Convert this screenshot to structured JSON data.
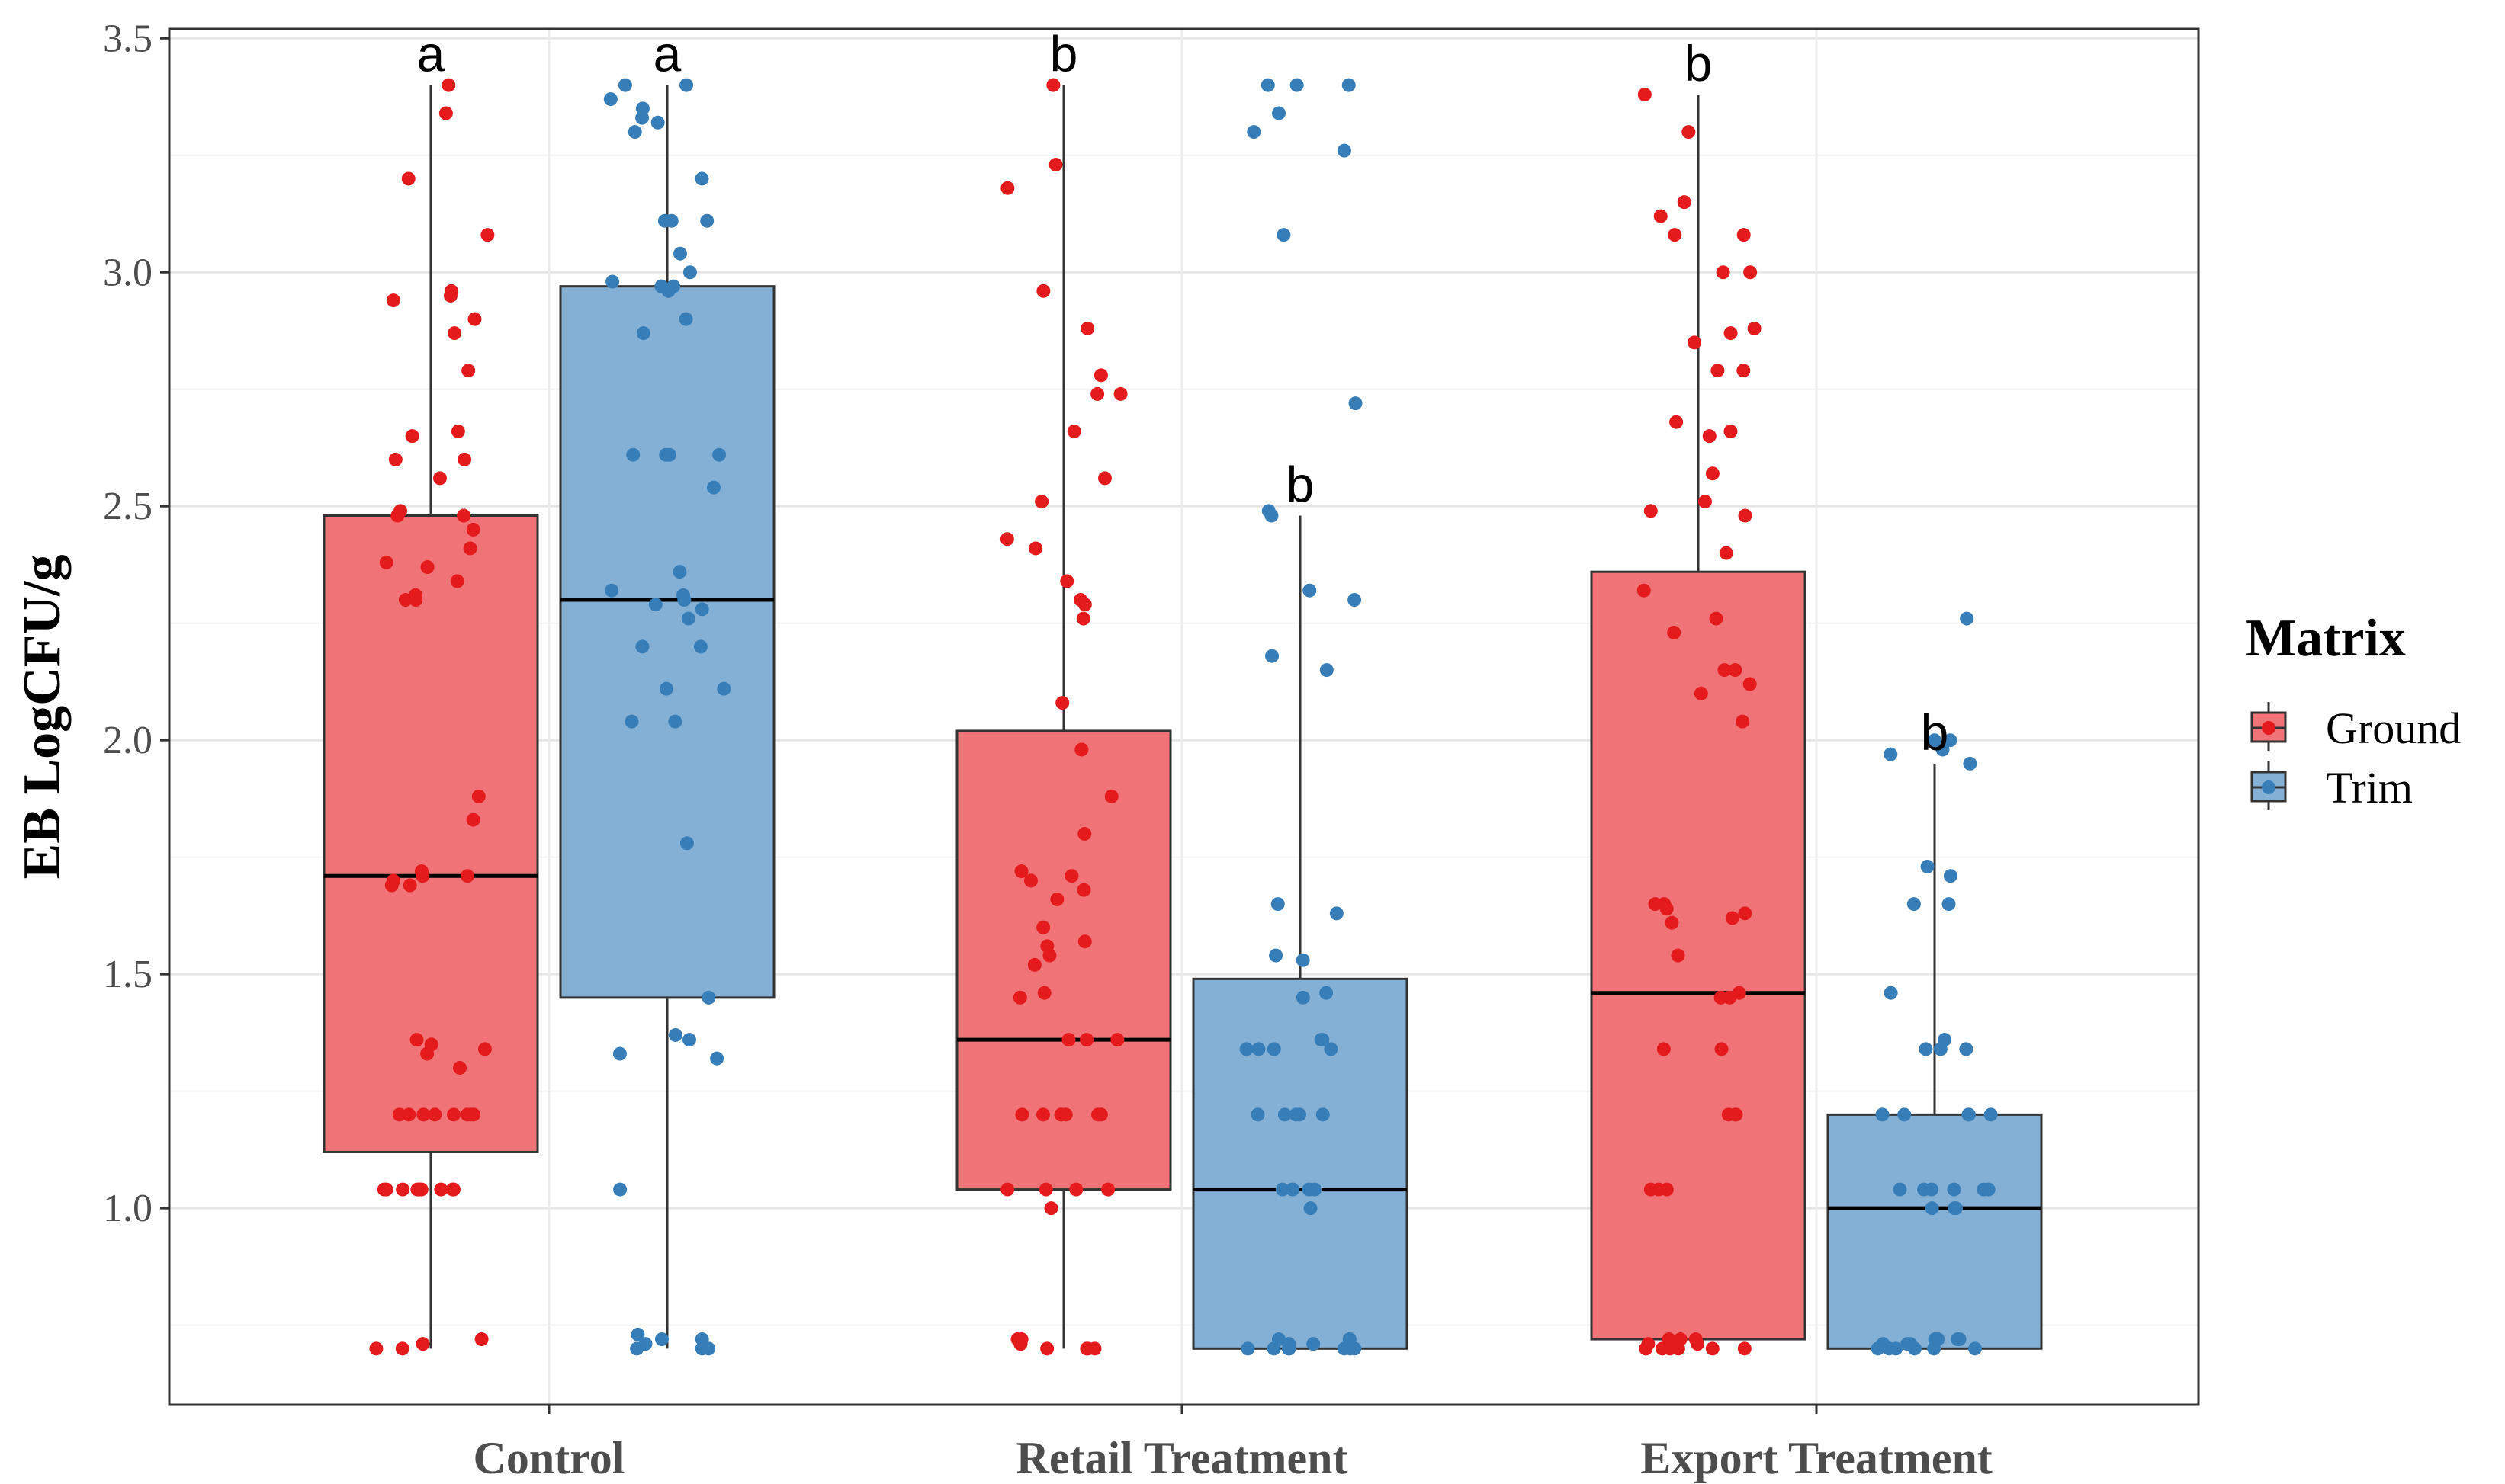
{
  "chart_data": {
    "type": "boxplot",
    "title": "",
    "xlabel": "",
    "ylabel": "EB LogCFU/g",
    "ylim": [
      0.58,
      3.52
    ],
    "yticks": [
      "1.0",
      "1.5",
      "2.0",
      "2.5",
      "3.0",
      "3.5"
    ],
    "ytick_values": [
      1.0,
      1.5,
      2.0,
      2.5,
      3.0,
      3.5
    ],
    "grid": true,
    "legend": {
      "title": "Matrix",
      "position": "right",
      "entries": [
        {
          "label": "Ground",
          "color": "#e41a1c",
          "fill": "#f07477"
        },
        {
          "label": "Trim",
          "color": "#377eb8",
          "fill": "#85b0d6"
        }
      ]
    },
    "categories": [
      "Control",
      "Retail Treatment",
      "Export Treatment"
    ],
    "boxes": [
      {
        "category": "Control",
        "matrix": "Ground",
        "min": 0.7,
        "q1": 1.12,
        "median": 1.71,
        "q3": 2.48,
        "max": 3.4,
        "letter": "a",
        "points": [
          3.4,
          3.2,
          3.34,
          3.08,
          2.96,
          2.95,
          2.94,
          2.9,
          2.87,
          2.79,
          2.66,
          2.65,
          2.6,
          2.6,
          2.56,
          2.49,
          2.48,
          2.48,
          2.45,
          2.41,
          2.38,
          2.37,
          2.34,
          2.31,
          2.3,
          2.3,
          1.88,
          1.83,
          1.72,
          1.71,
          1.71,
          1.7,
          1.69,
          1.69,
          1.36,
          1.35,
          1.34,
          1.33,
          1.3,
          1.2,
          1.2,
          1.2,
          1.2,
          1.2,
          1.2,
          1.2,
          1.2,
          1.04,
          1.04,
          1.04,
          1.04,
          1.04,
          1.04,
          1.04,
          1.04,
          1.04,
          1.04,
          0.72,
          0.71,
          0.7,
          0.7
        ]
      },
      {
        "category": "Control",
        "matrix": "Trim",
        "min": 0.7,
        "q1": 1.45,
        "median": 2.3,
        "q3": 2.97,
        "max": 3.4,
        "letter": "a",
        "points": [
          3.4,
          3.4,
          3.37,
          3.35,
          3.33,
          3.32,
          3.3,
          3.2,
          3.11,
          3.11,
          3.11,
          3.04,
          3.0,
          2.98,
          2.97,
          2.97,
          2.96,
          2.9,
          2.87,
          2.61,
          2.61,
          2.61,
          2.61,
          2.54,
          2.36,
          2.32,
          2.31,
          2.3,
          2.29,
          2.28,
          2.26,
          2.2,
          2.2,
          2.11,
          2.11,
          2.04,
          2.04,
          1.78,
          1.45,
          1.37,
          1.36,
          1.33,
          1.32,
          1.04,
          0.73,
          0.72,
          0.72,
          0.71,
          0.7,
          0.7,
          0.7
        ]
      },
      {
        "category": "Retail Treatment",
        "matrix": "Ground",
        "min": 0.7,
        "q1": 1.04,
        "median": 1.36,
        "q3": 2.02,
        "max": 3.4,
        "letter": "b",
        "points": [
          3.4,
          3.23,
          3.18,
          2.96,
          2.88,
          2.78,
          2.74,
          2.74,
          2.66,
          2.56,
          2.51,
          2.43,
          2.41,
          2.34,
          2.3,
          2.29,
          2.26,
          2.08,
          1.98,
          1.88,
          1.8,
          1.72,
          1.71,
          1.7,
          1.68,
          1.66,
          1.6,
          1.57,
          1.56,
          1.54,
          1.52,
          1.46,
          1.45,
          1.36,
          1.36,
          1.36,
          1.2,
          1.2,
          1.2,
          1.2,
          1.2,
          1.2,
          1.2,
          1.04,
          1.04,
          1.04,
          1.04,
          1.0,
          0.72,
          0.72,
          0.71,
          0.71,
          0.7,
          0.7,
          0.7,
          0.7
        ]
      },
      {
        "category": "Retail Treatment",
        "matrix": "Trim",
        "min": 0.7,
        "q1": 0.7,
        "median": 1.04,
        "q3": 1.49,
        "max": 2.48,
        "letter": "b",
        "points": [
          3.4,
          3.4,
          3.4,
          3.34,
          3.3,
          3.26,
          3.08,
          2.72,
          2.49,
          2.48,
          2.32,
          2.3,
          2.18,
          2.15,
          1.65,
          1.63,
          1.54,
          1.53,
          1.46,
          1.45,
          1.36,
          1.36,
          1.34,
          1.34,
          1.34,
          1.34,
          1.2,
          1.2,
          1.2,
          1.2,
          1.2,
          1.04,
          1.04,
          1.04,
          1.04,
          1.04,
          1.0,
          0.72,
          0.72,
          0.72,
          0.71,
          0.71,
          0.7,
          0.7,
          0.7,
          0.7,
          0.7,
          0.7,
          0.7
        ]
      },
      {
        "category": "Export Treatment",
        "matrix": "Ground",
        "min": 0.7,
        "q1": 0.72,
        "median": 1.46,
        "q3": 2.36,
        "max": 3.38,
        "letter": "b",
        "points": [
          3.38,
          3.3,
          3.15,
          3.12,
          3.08,
          3.08,
          3.0,
          3.0,
          2.88,
          2.87,
          2.85,
          2.79,
          2.79,
          2.68,
          2.66,
          2.65,
          2.57,
          2.51,
          2.49,
          2.48,
          2.4,
          2.32,
          2.26,
          2.23,
          2.15,
          2.15,
          2.12,
          2.1,
          2.04,
          1.65,
          1.65,
          1.64,
          1.63,
          1.62,
          1.61,
          1.54,
          1.46,
          1.45,
          1.45,
          1.34,
          1.34,
          1.2,
          1.2,
          1.2,
          1.04,
          1.04,
          1.04,
          0.72,
          0.72,
          0.72,
          0.71,
          0.71,
          0.7,
          0.7,
          0.7,
          0.7,
          0.7,
          0.7
        ]
      },
      {
        "category": "Export Treatment",
        "matrix": "Trim",
        "min": 0.7,
        "q1": 0.7,
        "median": 1.0,
        "q3": 1.2,
        "max": 1.95,
        "letter": "b",
        "points": [
          2.26,
          2.0,
          2.0,
          1.98,
          1.97,
          1.95,
          1.73,
          1.71,
          1.65,
          1.65,
          1.46,
          1.36,
          1.34,
          1.34,
          1.34,
          1.2,
          1.2,
          1.2,
          1.2,
          1.2,
          1.04,
          1.04,
          1.04,
          1.04,
          1.04,
          1.04,
          1.0,
          1.0,
          1.0,
          0.72,
          0.72,
          0.72,
          0.72,
          0.71,
          0.71,
          0.71,
          0.7,
          0.7,
          0.7,
          0.7,
          0.7,
          0.7
        ]
      }
    ]
  }
}
